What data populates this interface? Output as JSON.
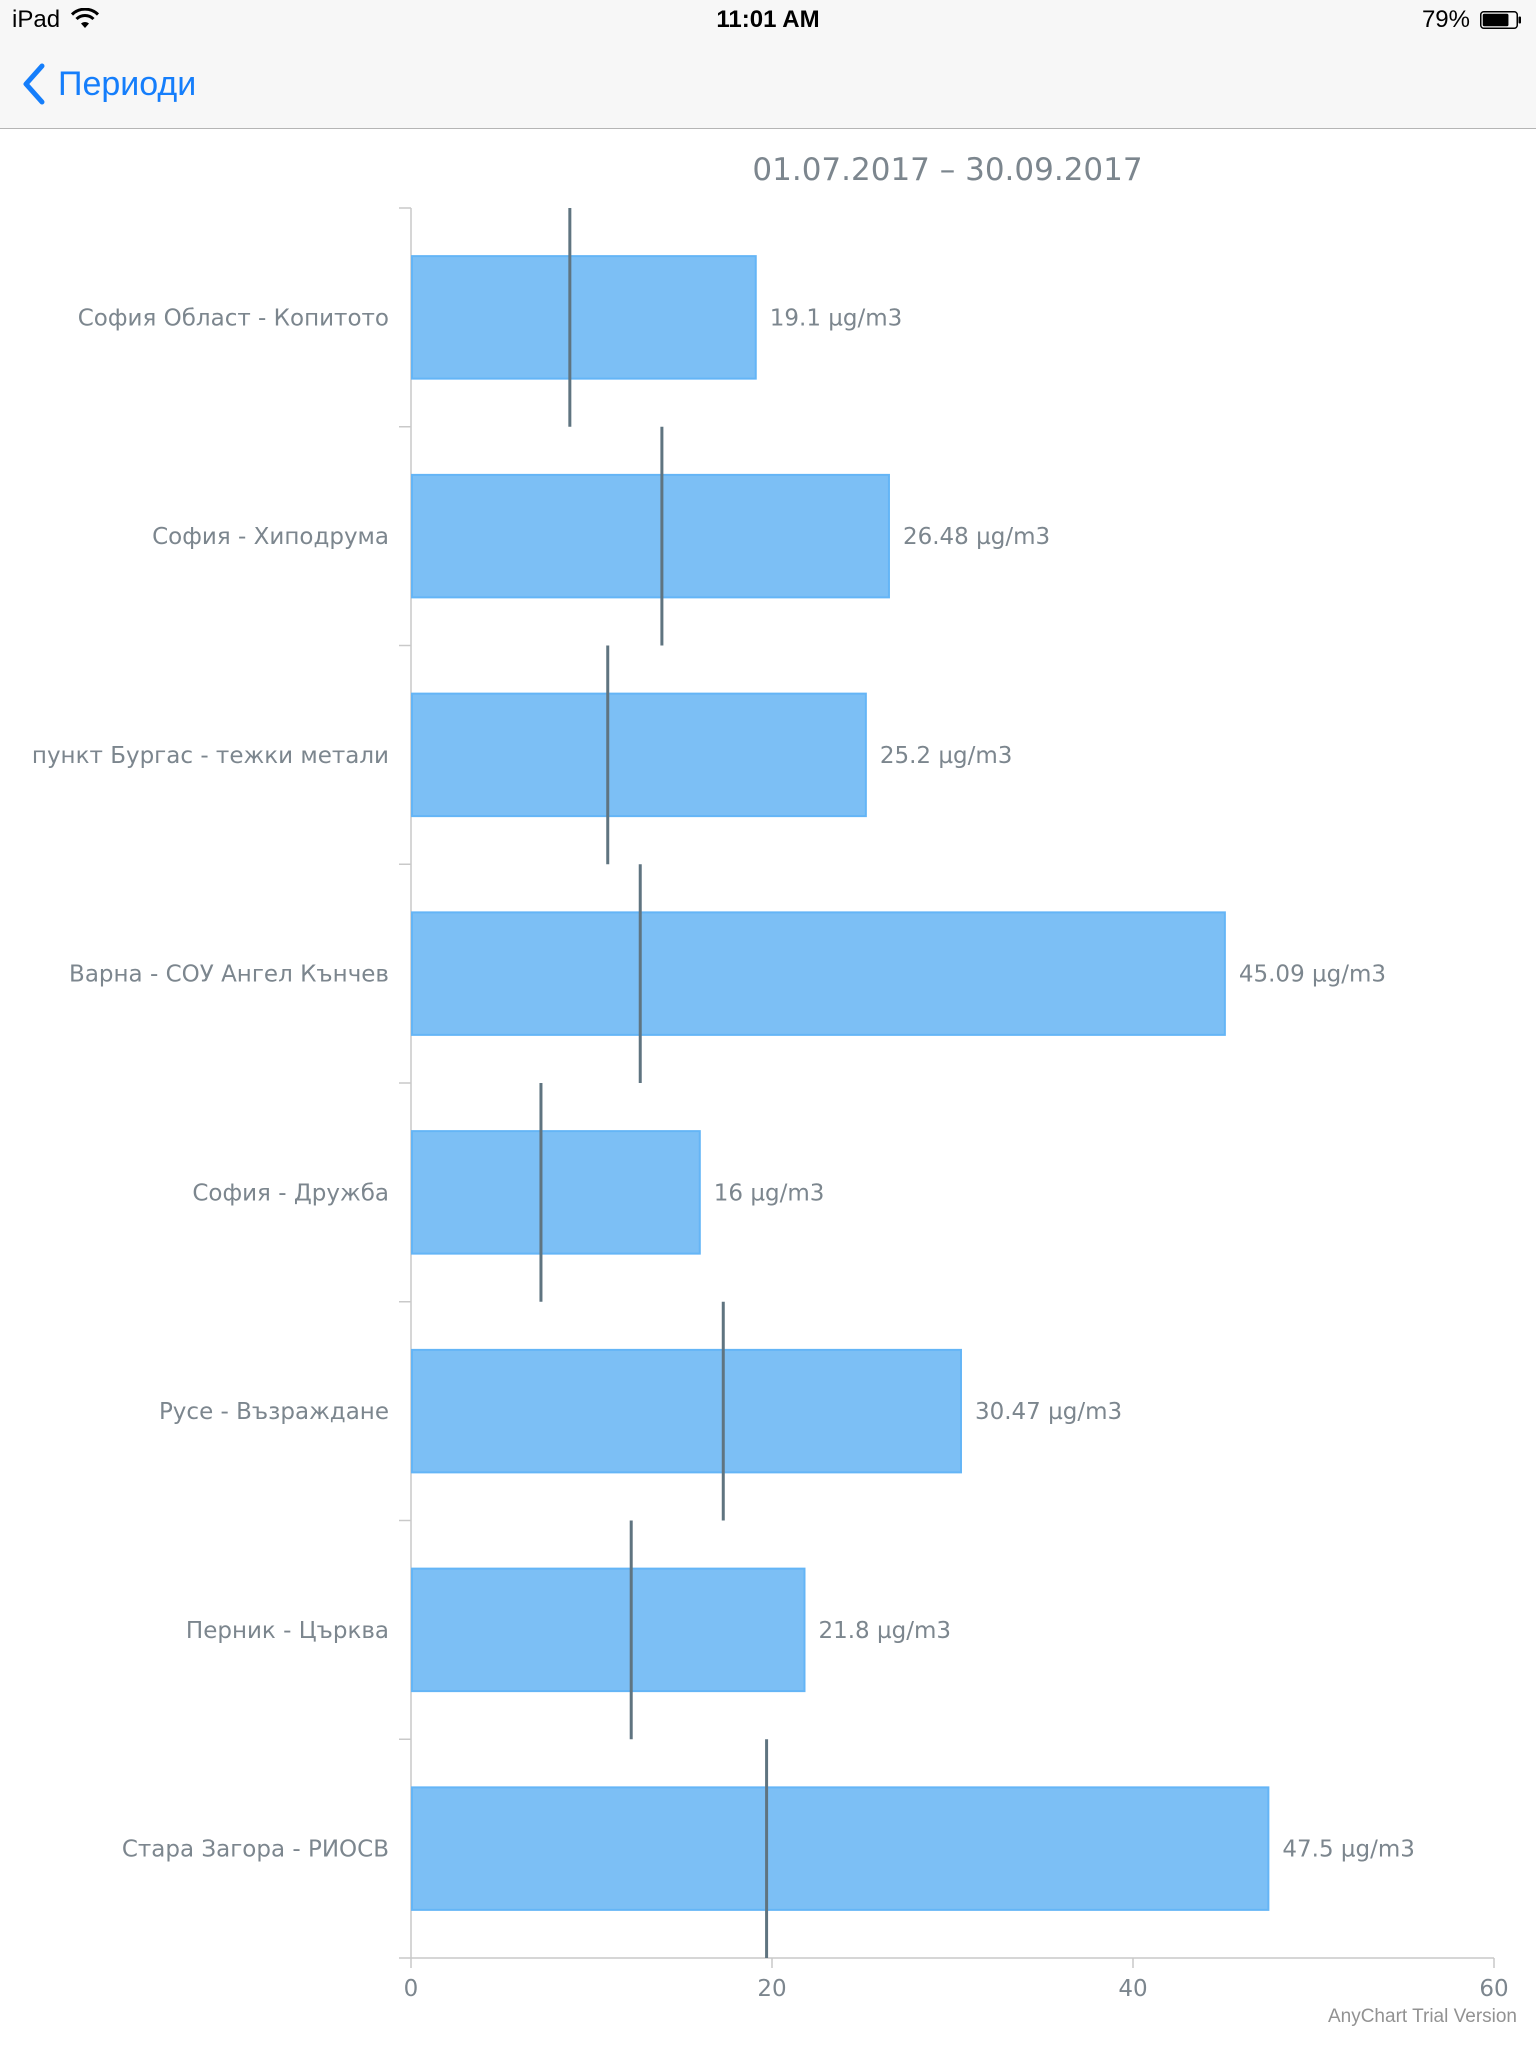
{
  "status_bar": {
    "device": "iPad",
    "time": "11:01 AM",
    "battery": "79%",
    "battery_level": 0.79
  },
  "nav": {
    "back_label": "Периоди",
    "back_icon": "chevron-left-icon",
    "accent": "#157efb"
  },
  "chart_data": {
    "type": "bar",
    "orientation": "horizontal",
    "title": "01.07.2017 – 30.09.2017",
    "categories": [
      "София Област - Копитото",
      "София - Хиподрума",
      "пункт Бургас - тежки метали",
      "Варна - СОУ Ангел Кънчев",
      "София - Дружба",
      "Русе - Възраждане",
      "Перник - Църква",
      "Стара Загора - РИОСВ"
    ],
    "values": [
      19.1,
      26.48,
      25.2,
      45.09,
      16,
      30.47,
      21.8,
      47.5
    ],
    "value_labels": [
      "19.1 µg/m3",
      "26.48 µg/m3",
      "25.2 µg/m3",
      "45.09 µg/m3",
      "16 µg/m3",
      "30.47 µg/m3",
      "21.8 µg/m3",
      "47.5 µg/m3"
    ],
    "markers": [
      8.8,
      13.9,
      10.9,
      12.7,
      7.2,
      17.3,
      12.2,
      19.7
    ],
    "xlim": [
      0,
      60
    ],
    "x_ticks": [
      "0",
      "20",
      "40",
      "60"
    ],
    "x_tick_values": [
      0,
      20,
      40,
      60
    ],
    "bar_color": "#7cbff5",
    "bar_stroke": "#64b5f6",
    "marker_color": "#5f7480",
    "credits": "AnyChart Trial Version"
  }
}
